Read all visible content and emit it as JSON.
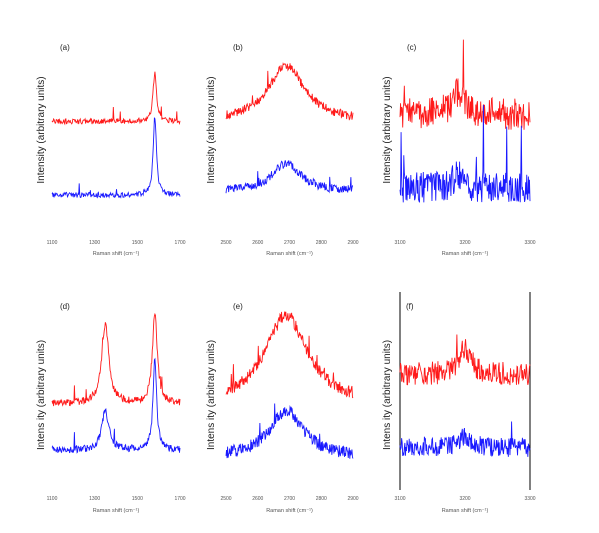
{
  "figure": {
    "ylabel_top": "Intensity (arbitrary units)",
    "ylabel_bottom": "Intens ity (arbitrary units)",
    "colors": {
      "upper": "#ff1a1a",
      "lower": "#1a1aff"
    }
  },
  "chart_data": [
    {
      "id": "a",
      "label": "(a)",
      "type": "line",
      "xlabel": "Raman shift (cm⁻¹)",
      "xlim": [
        1100,
        1700
      ],
      "ticks": [
        "1100",
        "1300",
        "1500",
        "1700"
      ],
      "series": [
        {
          "color": "#ff1a1a",
          "baseline": 0.62,
          "peaks": [
            {
              "x": 1582,
              "height": 0.28,
              "width": 10
            }
          ],
          "noise": 0.015
        },
        {
          "color": "#1a1aff",
          "baseline": 0.2,
          "peaks": [
            {
              "x": 1582,
              "height": 0.45,
              "width": 9
            }
          ],
          "noise": 0.015
        }
      ]
    },
    {
      "id": "b",
      "label": "(b)",
      "type": "line",
      "xlabel": "Raman shift (cm⁻¹)",
      "xlim": [
        2500,
        2900
      ],
      "ticks": [
        "2500",
        "2600",
        "2700",
        "2800",
        "2900"
      ],
      "series": [
        {
          "color": "#ff1a1a",
          "baseline": 0.62,
          "peaks": [
            {
              "x": 2690,
              "height": 0.32,
              "width": 70
            }
          ],
          "noise": 0.025
        },
        {
          "color": "#1a1aff",
          "baseline": 0.22,
          "peaks": [
            {
              "x": 2690,
              "height": 0.16,
              "width": 55
            }
          ],
          "noise": 0.025
        }
      ]
    },
    {
      "id": "c",
      "label": "(c)",
      "type": "line",
      "xlabel": "Raman shift (cm⁻¹)",
      "xlim": [
        3100,
        3300
      ],
      "ticks": [
        "3100",
        "3200",
        "3300"
      ],
      "series": [
        {
          "color": "#ff1a1a",
          "baseline": 0.66,
          "peaks": [
            {
              "x": 3190,
              "height": 0.12,
              "width": 12
            }
          ],
          "noise": 0.09
        },
        {
          "color": "#1a1aff",
          "baseline": 0.24,
          "peaks": [
            {
              "x": 3190,
              "height": 0.08,
              "width": 10
            }
          ],
          "noise": 0.09
        }
      ]
    },
    {
      "id": "d",
      "label": "(d)",
      "type": "line",
      "xlabel": "Raman shift (cm⁻¹)",
      "xlim": [
        1100,
        1700
      ],
      "ticks": [
        "1100",
        "1300",
        "1500",
        "1700"
      ],
      "series": [
        {
          "color": "#ff1a1a",
          "baseline": 0.4,
          "peaks": [
            {
              "x": 1350,
              "height": 0.45,
              "width": 20
            },
            {
              "x": 1582,
              "height": 0.5,
              "width": 14
            }
          ],
          "noise": 0.02
        },
        {
          "color": "#1a1aff",
          "baseline": 0.14,
          "peaks": [
            {
              "x": 1350,
              "height": 0.22,
              "width": 20
            },
            {
              "x": 1582,
              "height": 0.52,
              "width": 10
            }
          ],
          "noise": 0.02
        }
      ]
    },
    {
      "id": "e",
      "label": "(e)",
      "type": "line",
      "xlabel": "Raman shift (cm⁻¹)",
      "xlim": [
        2500,
        2900
      ],
      "ticks": [
        "2500",
        "2600",
        "2700",
        "2800",
        "2900"
      ],
      "series": [
        {
          "color": "#ff1a1a",
          "baseline": 0.4,
          "peaks": [
            {
              "x": 2690,
              "height": 0.5,
              "width": 80
            }
          ],
          "noise": 0.035
        },
        {
          "color": "#1a1aff",
          "baseline": 0.1,
          "peaks": [
            {
              "x": 2690,
              "height": 0.26,
              "width": 65
            }
          ],
          "noise": 0.035
        }
      ]
    },
    {
      "id": "f",
      "label": "(f)",
      "type": "line",
      "xlabel": "Raman shift (cm⁻¹)",
      "xlim": [
        3100,
        3300
      ],
      "ticks": [
        "3100",
        "3200",
        "3300"
      ],
      "series": [
        {
          "color": "#ff1a1a",
          "baseline": 0.6,
          "peaks": [
            {
              "x": 3200,
              "height": 0.14,
              "width": 10
            }
          ],
          "noise": 0.06
        },
        {
          "color": "#1a1aff",
          "baseline": 0.22,
          "peaks": [
            {
              "x": 3200,
              "height": 0.06,
              "width": 10
            }
          ],
          "noise": 0.05
        }
      ]
    }
  ]
}
